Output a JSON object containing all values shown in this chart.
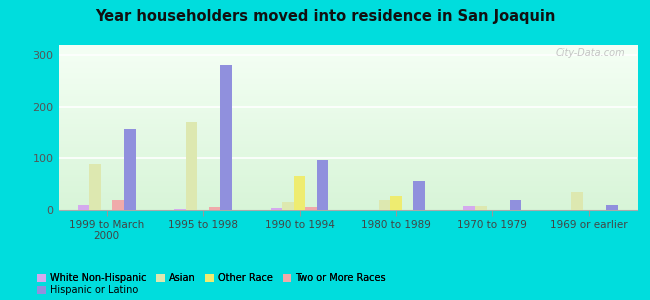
{
  "title": "Year householders moved into residence in San Joaquin",
  "categories": [
    "1999 to March\n2000",
    "1995 to 1998",
    "1990 to 1994",
    "1980 to 1989",
    "1970 to 1979",
    "1969 or earlier"
  ],
  "series": {
    "White Non-Hispanic": [
      10,
      2,
      3,
      0,
      8,
      0
    ],
    "Asian": [
      90,
      170,
      15,
      20,
      8,
      35
    ],
    "Other Race": [
      0,
      0,
      65,
      28,
      0,
      0
    ],
    "Two or More Races": [
      20,
      5,
      5,
      0,
      0,
      0
    ],
    "Hispanic or Latino": [
      158,
      282,
      97,
      57,
      20,
      10
    ]
  },
  "colors": {
    "White Non-Hispanic": "#d4aaee",
    "Asian": "#dde8b0",
    "Other Race": "#eeec70",
    "Two or More Races": "#f0aaaa",
    "Hispanic or Latino": "#9090dd"
  },
  "ylim": [
    0,
    320
  ],
  "yticks": [
    0,
    100,
    200,
    300
  ],
  "bg_top": "#f5fff5",
  "bg_bottom": "#d8f5d8",
  "outer_bg": "#00dddd",
  "watermark": "City-Data.com"
}
